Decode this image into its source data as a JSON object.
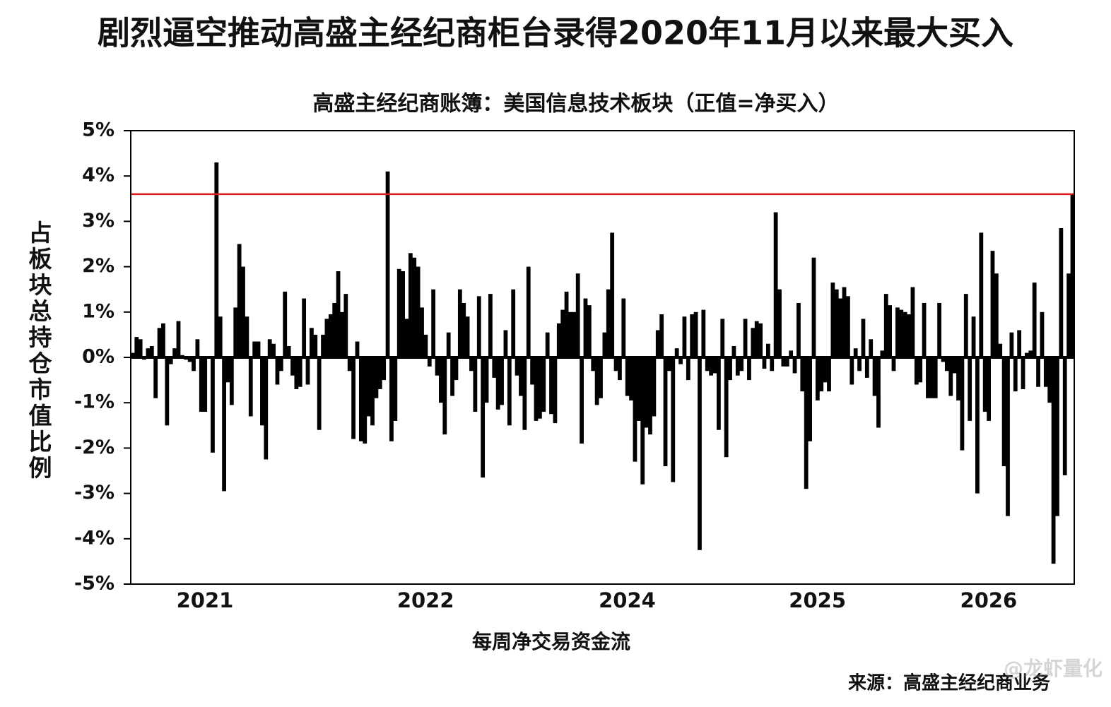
{
  "chart_data": {
    "type": "bar",
    "title": "剧烈逼空推动高盛主经纪商柜台录得2020年11月以来最大买入",
    "subtitle": "高盛主经纪商账簿：美国信息技术板块（正值=净买入）",
    "y_label": "占板块总持仓市值比例",
    "x_label": "每周净交易资金流",
    "source": "来源：高盛主经纪商业务",
    "watermark": "@龙虾量化",
    "color": "#000000",
    "reference_line": {
      "value": 3.6,
      "color": "#e01b1b"
    },
    "ylim": [
      -5,
      5
    ],
    "yticks": [
      {
        "value": 5,
        "label": "5%"
      },
      {
        "value": 4,
        "label": "4%"
      },
      {
        "value": 3,
        "label": "3%"
      },
      {
        "value": 2,
        "label": "2%"
      },
      {
        "value": 1,
        "label": "1%"
      },
      {
        "value": 0,
        "label": "0%"
      },
      {
        "value": -1,
        "label": "-1%"
      },
      {
        "value": -2,
        "label": "-2%"
      },
      {
        "value": -3,
        "label": "-3%"
      },
      {
        "value": -4,
        "label": "-4%"
      },
      {
        "value": -5,
        "label": "-5%"
      }
    ],
    "categories": [
      null,
      null,
      null,
      null,
      null,
      null,
      null,
      null,
      null,
      null,
      null,
      null,
      null,
      null,
      null,
      null,
      null,
      null,
      null,
      "2021",
      null,
      null,
      null,
      null,
      null,
      null,
      null,
      null,
      null,
      null,
      null,
      null,
      null,
      null,
      null,
      null,
      null,
      null,
      null,
      null,
      null,
      null,
      null,
      null,
      null,
      null,
      null,
      null,
      null,
      null,
      null,
      null,
      null,
      null,
      null,
      null,
      null,
      null,
      null,
      null,
      null,
      null,
      null,
      null,
      null,
      null,
      null,
      null,
      null,
      null,
      null,
      null,
      null,
      null,
      null,
      null,
      null,
      "2022",
      null,
      null,
      null,
      null,
      null,
      null,
      null,
      null,
      null,
      null,
      null,
      null,
      null,
      null,
      null,
      null,
      null,
      null,
      null,
      null,
      null,
      null,
      null,
      null,
      null,
      null,
      null,
      null,
      null,
      null,
      null,
      null,
      null,
      null,
      null,
      null,
      null,
      null,
      null,
      null,
      null,
      null,
      null,
      null,
      null,
      null,
      null,
      null,
      null,
      null,
      null,
      null,
      "2024",
      null,
      null,
      null,
      null,
      null,
      null,
      null,
      null,
      null,
      null,
      null,
      null,
      null,
      null,
      null,
      null,
      null,
      null,
      null,
      null,
      null,
      null,
      null,
      null,
      null,
      null,
      null,
      null,
      null,
      null,
      null,
      null,
      null,
      null,
      null,
      null,
      null,
      null,
      null,
      null,
      null,
      null,
      null,
      null,
      null,
      null,
      null,
      null,
      null,
      "2025",
      null,
      null,
      null,
      null,
      null,
      null,
      null,
      null,
      null,
      null,
      null,
      null,
      null,
      null,
      null,
      null,
      null,
      null,
      null,
      null,
      null,
      null,
      null,
      null,
      null,
      null,
      null,
      null,
      null,
      null,
      null,
      null,
      null,
      null,
      null,
      null,
      null,
      null,
      null,
      null,
      null,
      null,
      null,
      null,
      "2026",
      null,
      null,
      null,
      null,
      null,
      null,
      null,
      null,
      null,
      null,
      null,
      null,
      null,
      null,
      null,
      null,
      null,
      null,
      null,
      null,
      null,
      null
    ],
    "values": [
      0.1,
      0.45,
      0.4,
      -0.05,
      0.2,
      0.25,
      -0.9,
      0.65,
      0.75,
      -1.5,
      -0.15,
      0.2,
      0.8,
      0.05,
      -0.05,
      -0.1,
      -0.3,
      0.4,
      -1.2,
      -1.2,
      0.0,
      -2.1,
      4.3,
      0.9,
      -2.95,
      -0.55,
      -1.05,
      1.1,
      2.5,
      2.0,
      0.9,
      -1.3,
      0.35,
      0.35,
      -1.5,
      -2.25,
      0.4,
      0.3,
      -0.6,
      -0.3,
      1.45,
      0.25,
      -0.4,
      -0.7,
      -0.65,
      1.3,
      -0.6,
      0.65,
      0.5,
      -1.6,
      0.5,
      0.85,
      0.95,
      1.2,
      1.9,
      1.0,
      1.4,
      -0.3,
      -1.8,
      0.35,
      -1.85,
      -1.9,
      -1.3,
      -1.5,
      -0.9,
      -0.7,
      -0.5,
      4.1,
      -1.85,
      -1.4,
      1.95,
      1.9,
      0.85,
      2.3,
      2.2,
      2.0,
      1.1,
      0.5,
      -0.2,
      1.5,
      -0.4,
      -1.0,
      -1.7,
      0.55,
      -0.85,
      -0.5,
      1.5,
      1.2,
      0.9,
      -0.3,
      -1.2,
      1.35,
      -2.65,
      -1.0,
      1.4,
      -0.45,
      -1.15,
      -1.05,
      0.6,
      -1.5,
      1.5,
      -0.4,
      -0.85,
      -1.6,
      2.0,
      -0.6,
      -1.4,
      -1.35,
      -1.2,
      0.55,
      -1.25,
      -1.45,
      0.75,
      1.05,
      1.45,
      1.0,
      1.0,
      1.85,
      -1.9,
      1.3,
      1.15,
      -0.3,
      -1.05,
      -0.9,
      0.55,
      1.5,
      2.75,
      -0.3,
      -0.5,
      1.3,
      -0.85,
      -0.95,
      -2.3,
      -1.4,
      -2.8,
      -1.55,
      -1.7,
      -1.3,
      0.6,
      0.95,
      -2.4,
      -0.3,
      -2.75,
      0.2,
      -0.15,
      0.9,
      -0.5,
      0.95,
      1.0,
      -4.25,
      1.05,
      -0.3,
      -0.4,
      -0.35,
      -1.6,
      0.85,
      -2.2,
      -0.5,
      0.25,
      -0.4,
      -0.3,
      0.85,
      -0.5,
      0.65,
      0.8,
      0.75,
      -0.25,
      0.3,
      -0.3,
      3.2,
      1.5,
      -0.2,
      -0.2,
      0.15,
      -0.35,
      1.2,
      -0.75,
      -2.9,
      -1.85,
      2.2,
      -0.95,
      -0.75,
      -0.55,
      -0.75,
      1.65,
      1.5,
      1.3,
      1.55,
      1.35,
      -0.6,
      0.2,
      -0.3,
      0.85,
      -0.45,
      0.4,
      -0.85,
      -1.55,
      0.15,
      1.4,
      1.15,
      -0.3,
      1.1,
      1.05,
      1.0,
      0.95,
      1.55,
      -0.6,
      -0.55,
      1.2,
      -0.9,
      -0.9,
      -0.9,
      1.2,
      -0.1,
      -0.3,
      -0.85,
      -0.35,
      -0.95,
      -2.05,
      1.4,
      -1.4,
      0.9,
      -3.0,
      2.75,
      -1.2,
      -1.4,
      2.35,
      1.85,
      0.3,
      -2.4,
      -3.5,
      0.55,
      -0.75,
      0.6,
      -0.7,
      0.1,
      0.15,
      1.65,
      -0.65,
      1.0,
      -0.65,
      -1.0,
      -4.55,
      -3.5,
      2.85,
      -2.6,
      1.85,
      3.6
    ]
  }
}
